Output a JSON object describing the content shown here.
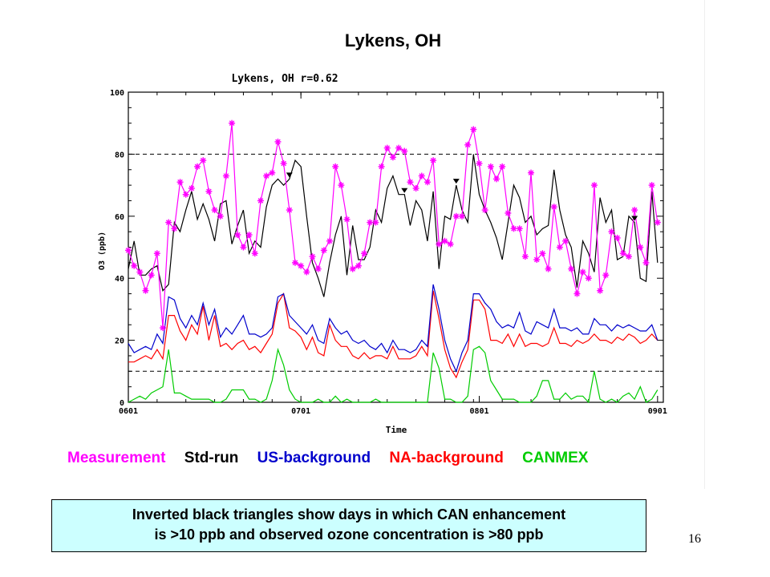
{
  "slide": {
    "title": "Lykens, OH",
    "page_number": "16",
    "note_line1": "Inverted black triangles show days in which CAN enhancement",
    "note_line2": "is >10 ppb and observed ozone concentration is >80 ppb"
  },
  "legend": [
    {
      "label": "Measurement",
      "color": "#ff00ff"
    },
    {
      "label": "Std-run",
      "color": "#000000"
    },
    {
      "label": "US-background",
      "color": "#0000cc"
    },
    {
      "label": "NA-background",
      "color": "#ff0000"
    },
    {
      "label": "CANMEX",
      "color": "#00cc00"
    }
  ],
  "chart_data": {
    "type": "line",
    "title": "Lykens, OH r=0.62",
    "xlabel": "Time",
    "ylabel": "O3 (ppb)",
    "xlim": [
      0,
      93
    ],
    "ylim": [
      0,
      100
    ],
    "x_ticks": [
      {
        "x": 0,
        "label": "0601"
      },
      {
        "x": 30,
        "label": "0701"
      },
      {
        "x": 61,
        "label": "0801"
      },
      {
        "x": 92,
        "label": "0901"
      }
    ],
    "y_ticks": [
      0,
      20,
      40,
      60,
      80,
      100
    ],
    "reference_lines": [
      80,
      10
    ],
    "series": [
      {
        "name": "Measurement",
        "color": "#ff00ff",
        "marker": "asterisk",
        "values": [
          49,
          44,
          42,
          36,
          41,
          48,
          24,
          58,
          56,
          71,
          67,
          69,
          76,
          78,
          68,
          62,
          60,
          73,
          90,
          54,
          50,
          54,
          48,
          65,
          73,
          74,
          84,
          77,
          62,
          45,
          44,
          42,
          47,
          43,
          49,
          52,
          76,
          70,
          59,
          43,
          44,
          48,
          58,
          58,
          76,
          82,
          79,
          82,
          81,
          71,
          69,
          73,
          71,
          78,
          51,
          52,
          51,
          60,
          60,
          83,
          88,
          77,
          62,
          76,
          72,
          76,
          61,
          56,
          56,
          47,
          74,
          46,
          48,
          43,
          63,
          50,
          52,
          43,
          35,
          42,
          40,
          70,
          36,
          41,
          55,
          53,
          48,
          47,
          62,
          50,
          45,
          70,
          58
        ]
      },
      {
        "name": "Std-run",
        "color": "#000000",
        "values": [
          43,
          52,
          41,
          41,
          43,
          44,
          36,
          38,
          58,
          55,
          62,
          68,
          59,
          64,
          59,
          52,
          64,
          65,
          51,
          57,
          62,
          48,
          52,
          50,
          63,
          70,
          72,
          70,
          72,
          78,
          76,
          60,
          45,
          40,
          34,
          45,
          54,
          60,
          41,
          57,
          46,
          46,
          50,
          62,
          58,
          69,
          73,
          67,
          67,
          57,
          65,
          62,
          52,
          68,
          43,
          60,
          59,
          70,
          62,
          58,
          80,
          67,
          62,
          58,
          53,
          46,
          58,
          70,
          66,
          58,
          60,
          54,
          56,
          57,
          75,
          62,
          54,
          50,
          37,
          52,
          48,
          42,
          66,
          58,
          62,
          46,
          47,
          60,
          58,
          40,
          39,
          68,
          45
        ]
      },
      {
        "name": "US-background",
        "color": "#0000cc",
        "values": [
          19,
          16,
          17,
          18,
          17,
          22,
          19,
          34,
          33,
          27,
          24,
          28,
          25,
          32,
          25,
          30,
          21,
          24,
          22,
          25,
          28,
          22,
          22,
          21,
          22,
          24,
          34,
          35,
          28,
          26,
          24,
          22,
          25,
          20,
          19,
          27,
          24,
          22,
          23,
          20,
          19,
          20,
          18,
          17,
          19,
          16,
          20,
          17,
          17,
          16,
          17,
          20,
          18,
          38,
          30,
          20,
          14,
          10,
          16,
          20,
          35,
          35,
          32,
          30,
          26,
          24,
          25,
          24,
          29,
          23,
          22,
          26,
          25,
          24,
          30,
          24,
          24,
          23,
          24,
          22,
          22,
          27,
          25,
          25,
          23,
          25,
          24,
          25,
          24,
          23,
          23,
          25,
          20
        ]
      },
      {
        "name": "NA-background",
        "color": "#ff0000",
        "values": [
          13,
          13,
          14,
          15,
          14,
          17,
          14,
          28,
          28,
          23,
          20,
          25,
          22,
          31,
          20,
          28,
          18,
          19,
          17,
          19,
          20,
          17,
          18,
          16,
          19,
          22,
          32,
          35,
          24,
          23,
          21,
          17,
          21,
          16,
          15,
          25,
          20,
          18,
          18,
          15,
          14,
          16,
          14,
          15,
          15,
          14,
          18,
          14,
          14,
          14,
          15,
          18,
          15,
          36,
          27,
          17,
          11,
          8,
          13,
          17,
          33,
          33,
          30,
          20,
          20,
          19,
          22,
          18,
          22,
          18,
          19,
          19,
          18,
          19,
          24,
          19,
          19,
          18,
          20,
          19,
          20,
          22,
          20,
          20,
          19,
          21,
          20,
          22,
          21,
          19,
          20,
          22,
          20
        ]
      },
      {
        "name": "CANMEX",
        "color": "#00cc00",
        "values": [
          0,
          1,
          2,
          1,
          3,
          4,
          5,
          17,
          3,
          3,
          2,
          1,
          1,
          1,
          1,
          0,
          0,
          1,
          4,
          4,
          4,
          1,
          1,
          0,
          1,
          7,
          17,
          12,
          4,
          1,
          0,
          0,
          0,
          1,
          0,
          0,
          2,
          0,
          1,
          0,
          0,
          0,
          0,
          1,
          0,
          0,
          0,
          0,
          0,
          0,
          0,
          0,
          0,
          16,
          11,
          1,
          1,
          0,
          0,
          2,
          17,
          18,
          16,
          7,
          4,
          1,
          1,
          1,
          0,
          0,
          0,
          2,
          7,
          7,
          1,
          1,
          3,
          1,
          2,
          2,
          0,
          10,
          1,
          0,
          1,
          0,
          2,
          3,
          1,
          5,
          0,
          1,
          4
        ]
      }
    ],
    "triangle_markers": [
      28,
      48,
      57,
      88
    ],
    "grid": false,
    "legend_position": "below"
  }
}
